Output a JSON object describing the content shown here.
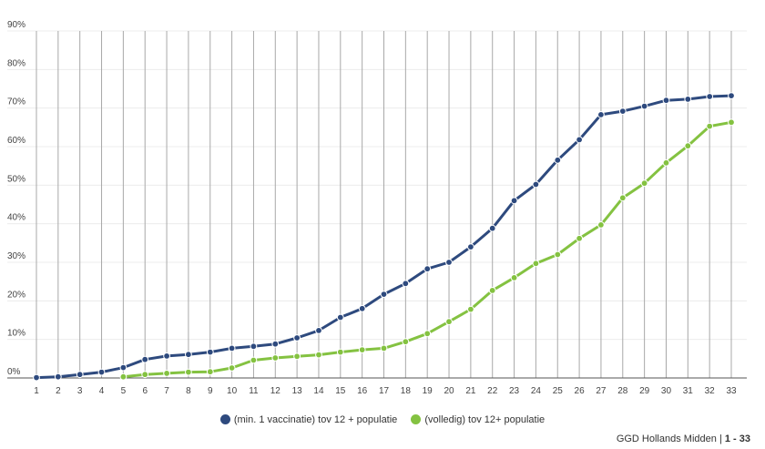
{
  "chart_data": {
    "type": "line",
    "x": [
      1,
      2,
      3,
      4,
      5,
      6,
      7,
      8,
      9,
      10,
      11,
      12,
      13,
      14,
      15,
      16,
      17,
      18,
      19,
      20,
      21,
      22,
      23,
      24,
      25,
      26,
      27,
      28,
      29,
      30,
      31,
      32,
      33
    ],
    "y_ticks": [
      "0%",
      "10%",
      "20%",
      "30%",
      "40%",
      "50%",
      "60%",
      "70%",
      "80%",
      "90%"
    ],
    "ylim": [
      0,
      90
    ],
    "grid": "vertical",
    "legend_position": "bottom",
    "series": [
      {
        "name": "(min. 1 vaccinatie) tov 12 + populatie",
        "color": "#2e4a7e",
        "values": [
          0.1,
          0.3,
          0.9,
          1.5,
          2.7,
          4.8,
          5.7,
          6.1,
          6.7,
          7.7,
          8.2,
          8.8,
          10.4,
          12.3,
          15.7,
          18.0,
          21.7,
          24.5,
          28.3,
          30.0,
          34.0,
          38.8,
          46.0,
          50.2,
          56.5,
          61.8,
          68.3,
          69.2,
          70.5,
          72.0,
          72.3,
          73.0,
          73.2
        ]
      },
      {
        "name": "(volledig) tov 12+ populatie",
        "color": "#84c241",
        "values": [
          null,
          null,
          null,
          null,
          0.3,
          0.9,
          1.2,
          1.5,
          1.6,
          2.6,
          4.6,
          5.2,
          5.6,
          6.0,
          6.7,
          7.3,
          7.7,
          9.4,
          11.5,
          14.6,
          17.8,
          22.7,
          26.0,
          29.7,
          32.0,
          36.2,
          39.7,
          46.7,
          50.5,
          55.8,
          60.2,
          65.3,
          66.3
        ]
      }
    ]
  },
  "footer": {
    "source": "GGD Hollands Midden",
    "separator": "|",
    "pages": "1 - 33"
  }
}
